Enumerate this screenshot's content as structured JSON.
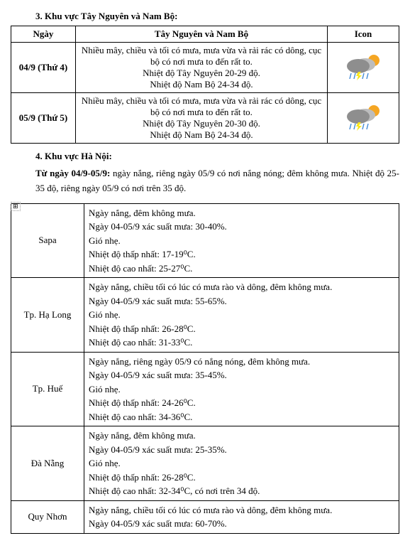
{
  "section3": {
    "title": "3. Khu vực Tây Nguyên và Nam Bộ:",
    "headers": {
      "date": "Ngày",
      "region": "Tây Nguyên và Nam Bộ",
      "icon": "Icon"
    },
    "rows": [
      {
        "date": "04/9 (Thứ 4)",
        "desc": "Nhiều mây, chiều và tối có mưa, mưa vừa và rải rác có dông, cục bộ có nơi mưa to đến rất to.\nNhiệt độ Tây Nguyên 20-29 độ.\nNhiệt độ Nam Bộ 24-34 độ.",
        "icon": "storm-cloud-sun"
      },
      {
        "date": "05/9 (Thứ 5)",
        "desc": "Nhiều mây, chiều và tối có mưa, mưa vừa và rải rác có dông, cục bộ có nơi mưa to đến rất to.\nNhiệt độ Tây Nguyên 20-30 độ.\nNhiệt độ Nam Bộ 24-34 độ.",
        "icon": "storm-cloud-sun"
      }
    ]
  },
  "section4": {
    "title": "4. Khu vực Hà Nội:",
    "lead": "Từ ngày 04/9-05/9:",
    "text": " ngày nắng, riêng ngày 05/9 có nơi nắng nóng; đêm không mưa. Nhiệt độ 25-35 độ, riêng ngày 05/9 có nơi trên 35 độ.",
    "anchor": "⊞"
  },
  "cities": [
    {
      "name": "Sapa",
      "lines": [
        "Ngày nắng, đêm không mưa.",
        "Ngày 04-05/9 xác suất mưa: 30-40%.",
        "Gió nhẹ.",
        "Nhiệt độ thấp nhất: 17-19⁰C.",
        "Nhiệt độ cao nhất: 25-27⁰C."
      ]
    },
    {
      "name": "Tp. Hạ Long",
      "lines": [
        "Ngày nắng, chiều tối có lúc có mưa rào và dông, đêm không mưa.",
        "Ngày 04-05/9 xác suất mưa: 55-65%.",
        "Gió nhẹ.",
        "Nhiệt độ thấp nhất: 26-28⁰C.",
        "Nhiệt độ cao nhất: 31-33⁰C."
      ]
    },
    {
      "name": "Tp. Huế",
      "lines": [
        "Ngày nắng, riêng ngày 05/9 có nắng nóng, đêm không mưa.",
        "Ngày 04-05/9 xác suất mưa: 35-45%.",
        "Gió nhẹ.",
        "Nhiệt độ thấp nhất: 24-26⁰C.",
        "Nhiệt độ cao nhất: 34-36⁰C."
      ]
    },
    {
      "name": "Đà Nẵng",
      "lines": [
        "Ngày nắng, đêm không mưa.",
        "Ngày 04-05/9 xác suất mưa: 25-35%.",
        "Gió nhẹ.",
        "Nhiệt độ thấp nhất: 26-28⁰C.",
        "Nhiệt độ cao nhất: 32-34⁰C, có nơi trên 34 độ."
      ]
    },
    {
      "name": "Quy Nhơn",
      "lines": [
        "Ngày nắng, chiều tối có lúc có mưa rào và dông, đêm không mưa.",
        "Ngày 04-05/9 xác suất mưa: 60-70%."
      ]
    }
  ],
  "icon_colors": {
    "sun": "#f5a623",
    "cloud_front": "#8e8e8e",
    "cloud_back": "#bdbdbd",
    "rain": "#4a90d9",
    "lightning": "#f8e71c"
  }
}
